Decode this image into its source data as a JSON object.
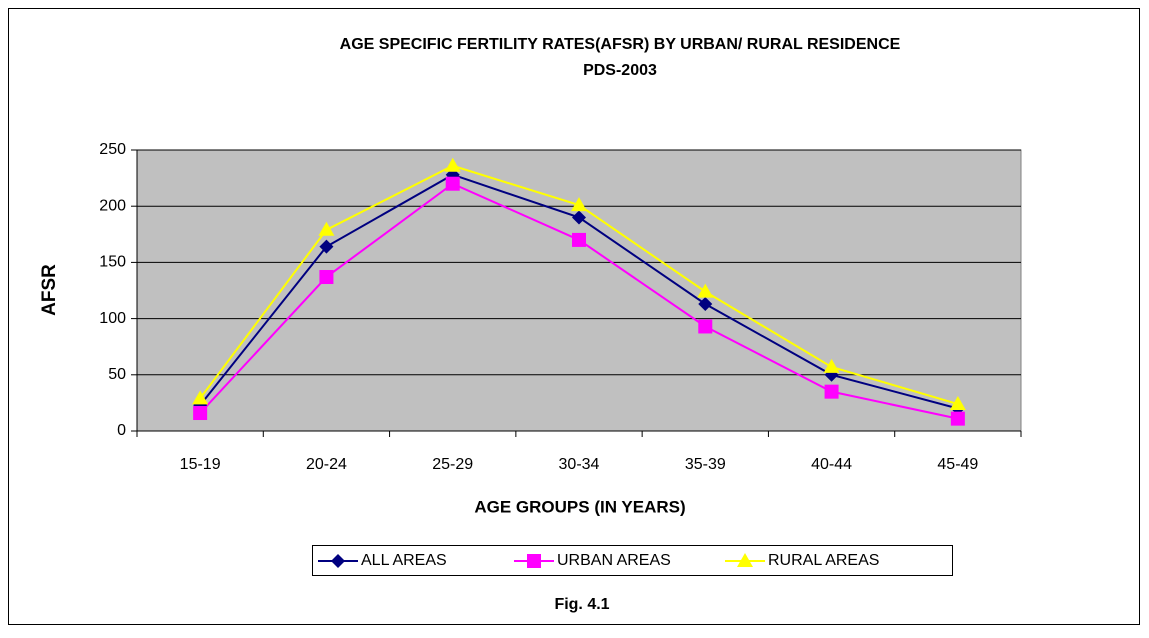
{
  "chart_data": {
    "type": "line",
    "title": "AGE SPECIFIC FERTILITY RATES(AFSR) BY URBAN/ RURAL RESIDENCE",
    "subtitle": "PDS-2003",
    "x_label": "AGE GROUPS (IN YEARS)",
    "y_label": "AFSR",
    "caption": "Fig. 4.1",
    "categories": [
      "15-19",
      "20-24",
      "25-29",
      "30-34",
      "35-39",
      "40-44",
      "45-49"
    ],
    "series": [
      {
        "name": "ALL AREAS",
        "color": "#000080",
        "marker": "diamond",
        "values": [
          23,
          164,
          228,
          190,
          113,
          50,
          20
        ]
      },
      {
        "name": "URBAN AREAS",
        "color": "#ff00ff",
        "marker": "square",
        "values": [
          16,
          137,
          220,
          170,
          93,
          35,
          11
        ]
      },
      {
        "name": "RURAL AREAS",
        "color": "#ffff00",
        "marker": "triangle",
        "values": [
          29,
          179,
          236,
          201,
          124,
          57,
          24
        ]
      }
    ],
    "ylim": [
      0,
      250
    ],
    "yticks": [
      0,
      50,
      100,
      150,
      200,
      250
    ],
    "grid": true,
    "legend": "bottom"
  }
}
